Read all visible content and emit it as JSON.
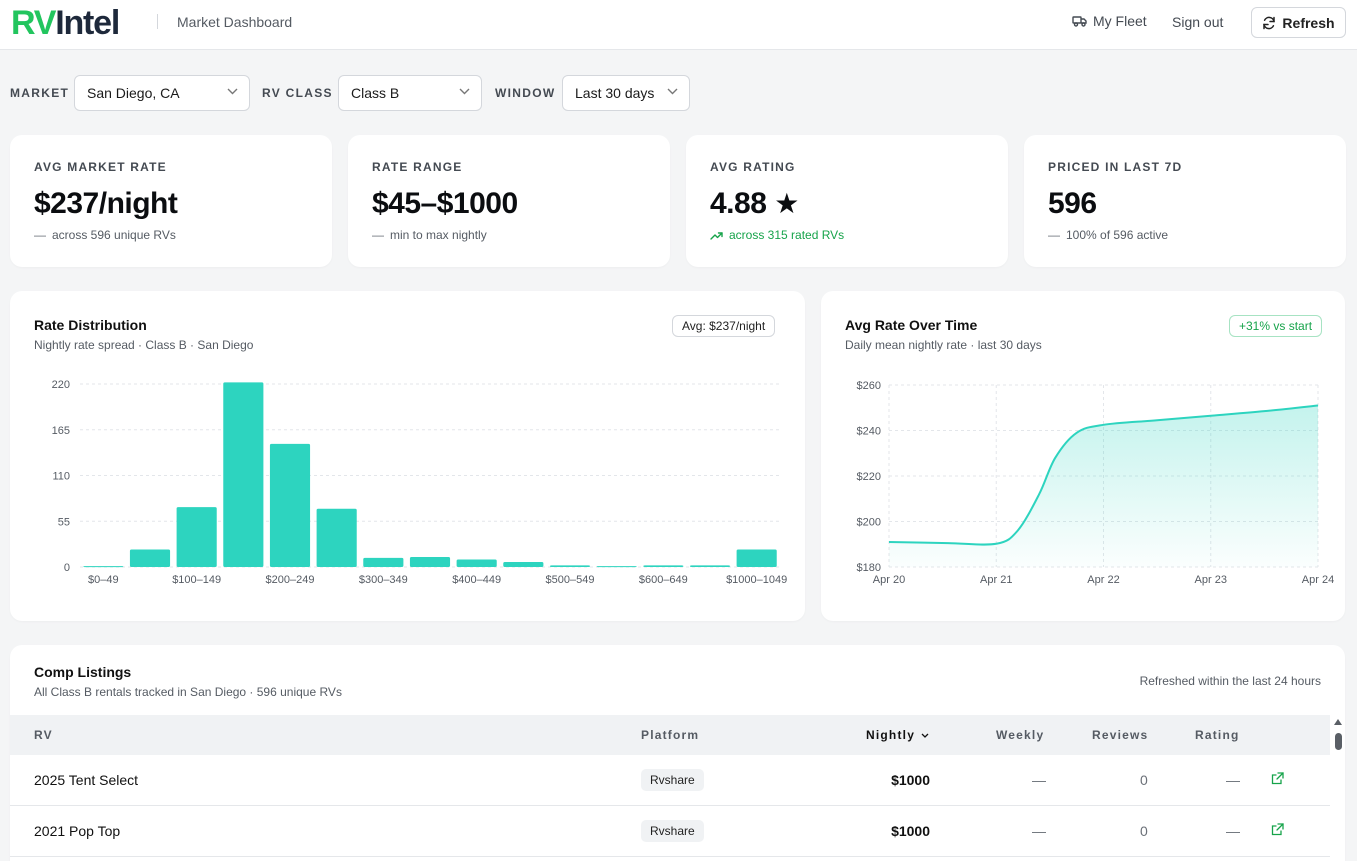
{
  "header": {
    "logo_rv": "RV",
    "logo_intel": "Intel",
    "title": "Market Dashboard",
    "fleet_label": "My Fleet",
    "signout_label": "Sign out",
    "refresh_label": "Refresh"
  },
  "filters": {
    "market_label": "MARKET",
    "market_value": "San Diego, CA",
    "class_label": "RV CLASS",
    "class_value": "Class B",
    "window_label": "WINDOW",
    "window_value": "Last 30 days"
  },
  "kpis": [
    {
      "label": "AVG MARKET RATE",
      "value": "$237/night",
      "sub": "across 596 unique RVs",
      "trend": "flat"
    },
    {
      "label": "RATE RANGE",
      "value": "$45–$1000",
      "sub": "min to max nightly",
      "trend": "flat"
    },
    {
      "label": "AVG RATING",
      "value": "4.88",
      "star": "★",
      "sub": "across 315 rated RVs",
      "trend": "up"
    },
    {
      "label": "PRICED IN LAST 7D",
      "value": "596",
      "sub": "100% of 596 active",
      "trend": "flat"
    }
  ],
  "dist_chart": {
    "title": "Rate Distribution",
    "subtitle": "Nightly rate spread · Class B · San Diego",
    "badge": "Avg: $237/night"
  },
  "trend_chart": {
    "title": "Avg Rate Over Time",
    "subtitle": "Daily mean nightly rate · last 30 days",
    "badge": "+31% vs start"
  },
  "chart_data": [
    {
      "type": "bar",
      "categories": [
        "$0–49",
        "$50–99",
        "$100–149",
        "$150–199",
        "$200–249",
        "$250–299",
        "$300–349",
        "$350–399",
        "$400–449",
        "$450–499",
        "$500–549",
        "$550–599",
        "$600–649",
        "$650–699",
        "$1000–1049"
      ],
      "tick_labels": [
        "$0–49",
        "$100–149",
        "$200–249",
        "$300–349",
        "$400–449",
        "$500–549",
        "$600–649",
        "$1000–1049"
      ],
      "values": [
        1,
        21,
        72,
        222,
        148,
        70,
        11,
        12,
        9,
        6,
        2,
        1,
        2,
        2,
        21
      ],
      "yticks": [
        0,
        55,
        110,
        165,
        220
      ],
      "ylim": [
        0,
        220
      ],
      "grid": true,
      "color": "#2dd4bf"
    },
    {
      "type": "area",
      "x": [
        "Apr 20",
        "Apr 21",
        "Apr 22",
        "Apr 23",
        "Apr 24"
      ],
      "points": [
        [
          0,
          191
        ],
        [
          0.55,
          190.5
        ],
        [
          1.0,
          190.2
        ],
        [
          1.2,
          196
        ],
        [
          1.4,
          212
        ],
        [
          1.55,
          228
        ],
        [
          1.75,
          239
        ],
        [
          2.0,
          242.5
        ],
        [
          2.5,
          244.5
        ],
        [
          3.0,
          246.5
        ],
        [
          3.5,
          248.5
        ],
        [
          4.0,
          251
        ]
      ],
      "yticks": [
        "$180",
        "$200",
        "$220",
        "$240",
        "$260"
      ],
      "ylim": [
        180,
        260
      ],
      "grid": true,
      "color": "#2dd4bf"
    }
  ],
  "table": {
    "title": "Comp Listings",
    "subtitle": "All Class B rentals tracked in San Diego · 596 unique RVs",
    "refreshed": "Refreshed within the last 24 hours",
    "columns": {
      "rv": "RV",
      "platform": "Platform",
      "nightly": "Nightly",
      "weekly": "Weekly",
      "reviews": "Reviews",
      "rating": "Rating"
    },
    "rows": [
      {
        "name": "2025 Tent Select",
        "platform": "Rvshare",
        "nightly": "$1000",
        "weekly": "—",
        "reviews": "0",
        "rating": "—"
      },
      {
        "name": "2021 Pop Top",
        "platform": "Rvshare",
        "nightly": "$1000",
        "weekly": "—",
        "reviews": "0",
        "rating": "—"
      }
    ]
  }
}
